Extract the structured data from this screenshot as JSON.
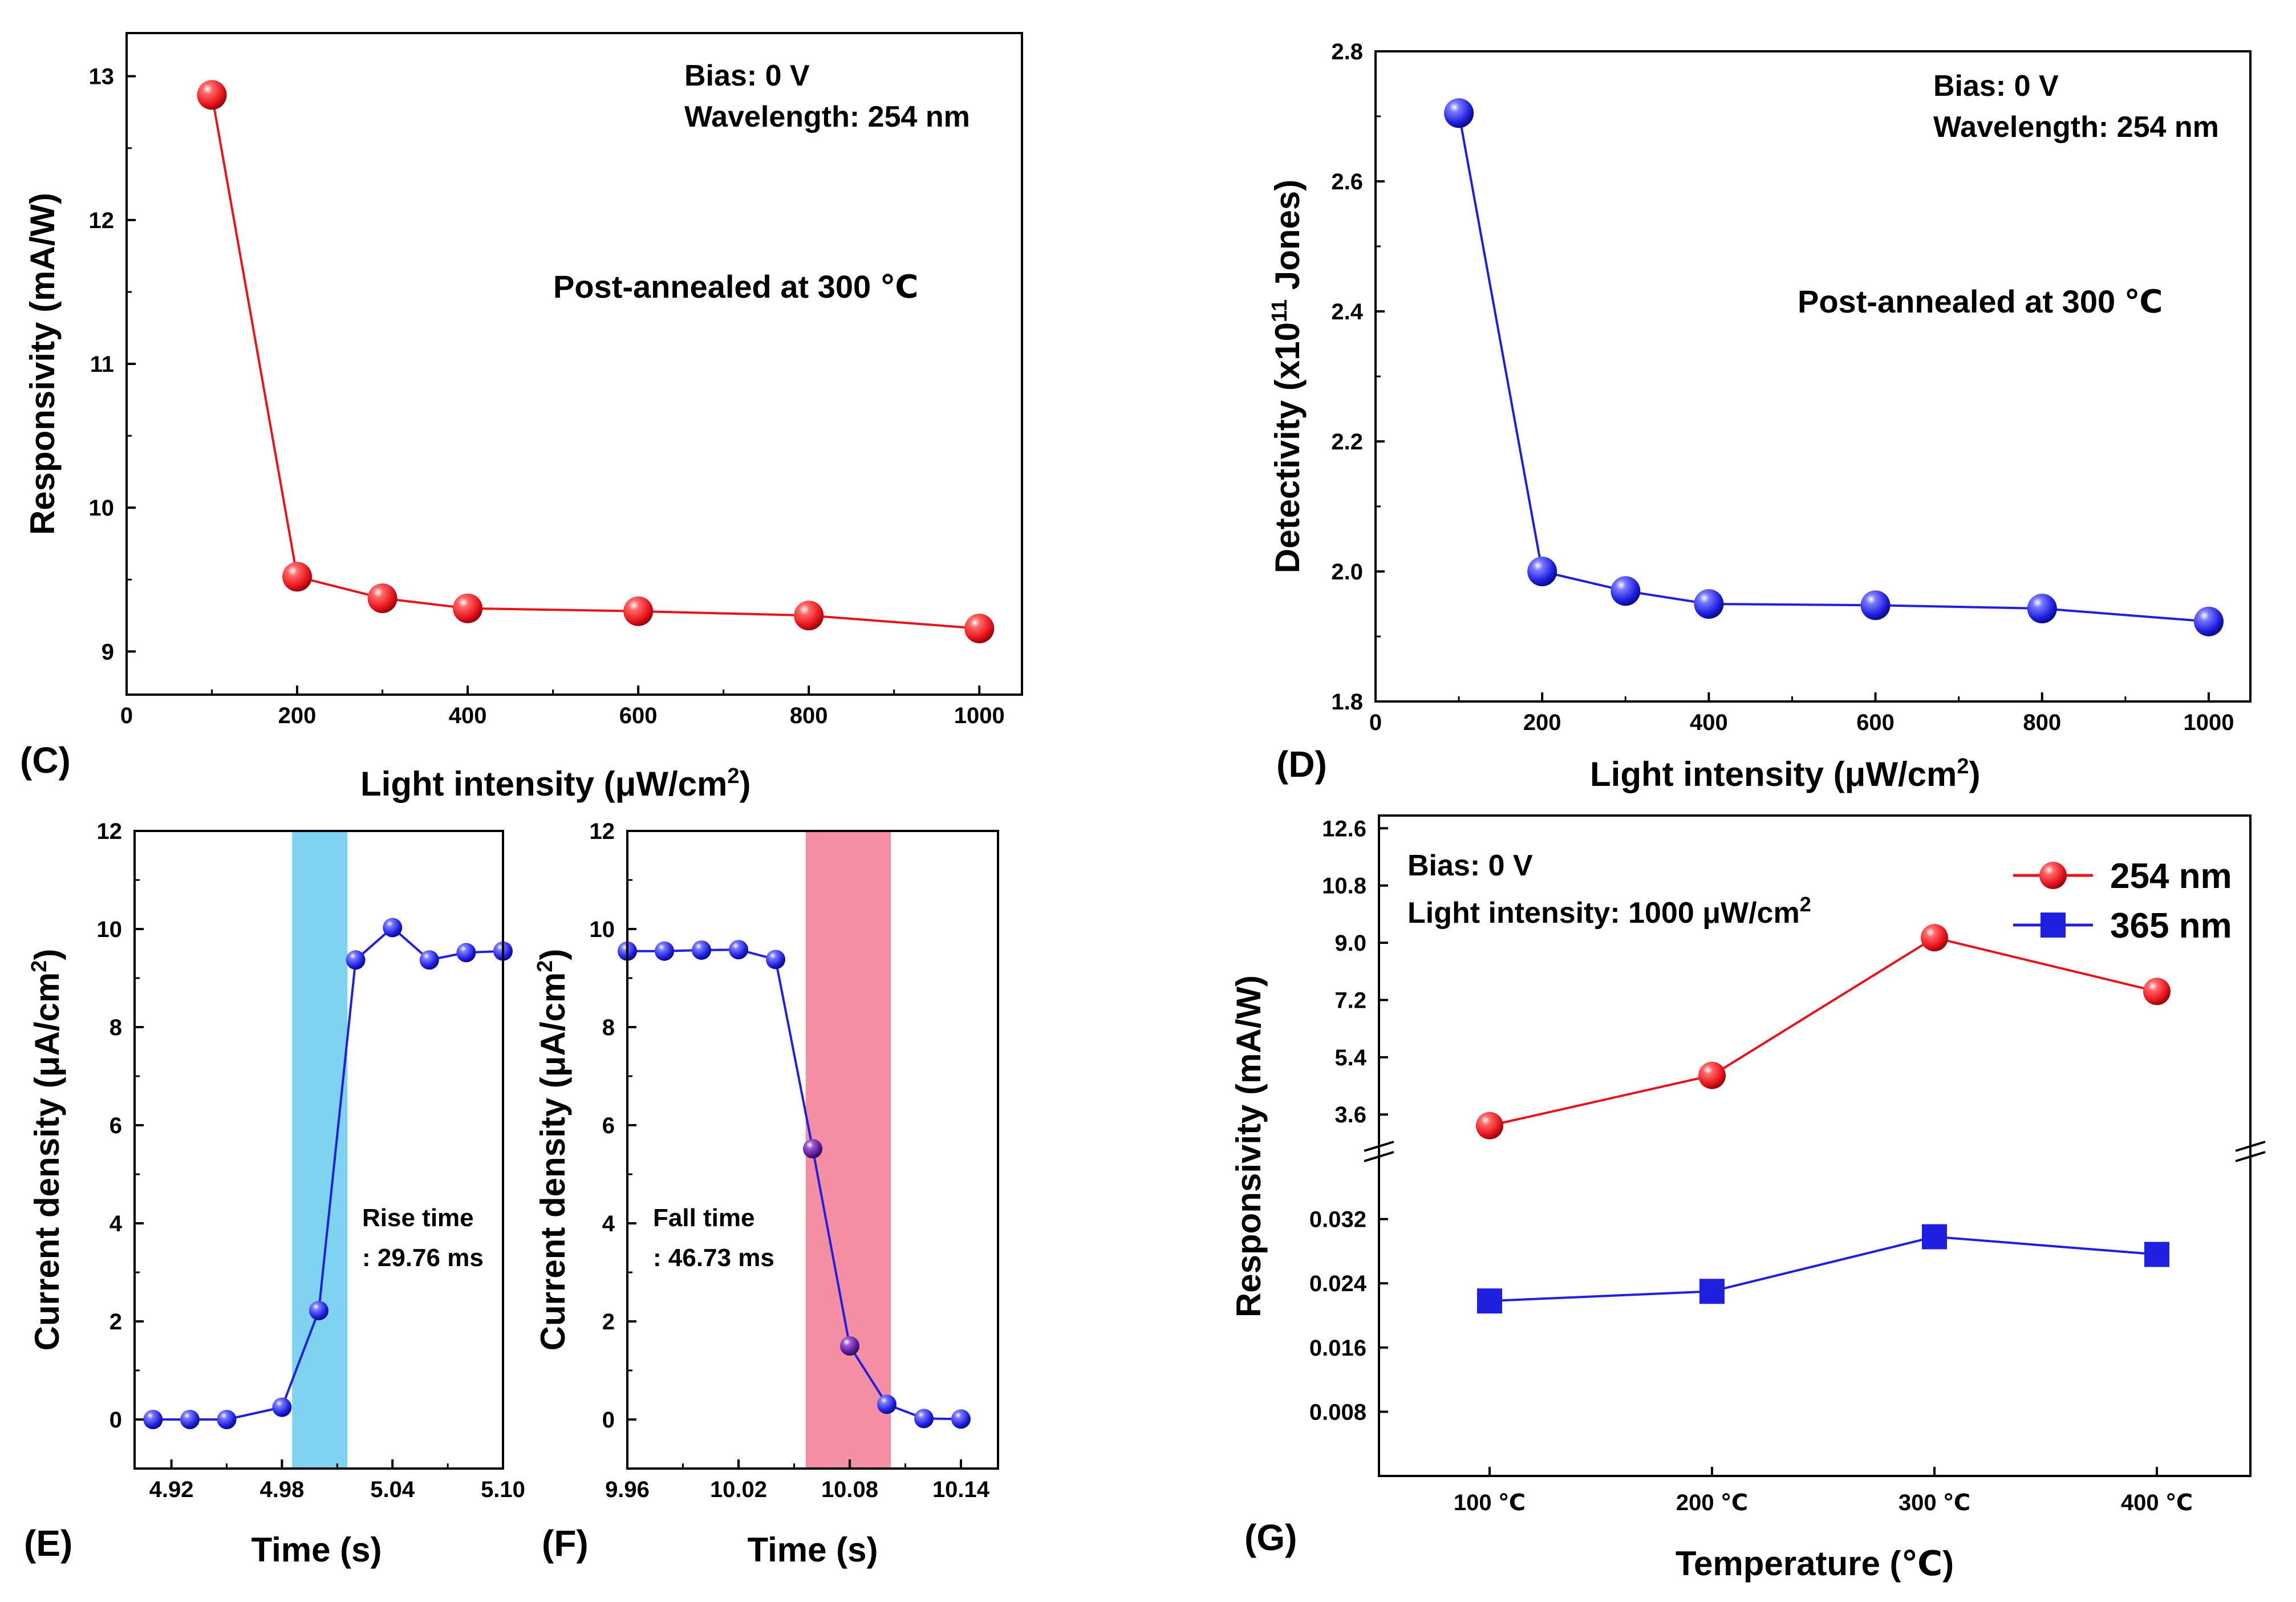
{
  "chart_data": [
    {
      "id": "C",
      "panel_letter": "(C)",
      "type": "line",
      "xlabel_main": "Light intensity (",
      "xlabel_mu": "μ",
      "xlabel_rest": "W/cm",
      "xlabel_sup": "2",
      "xlabel_close": ")",
      "ylabel": "Responsivity (mA/W)",
      "xlim": [
        0,
        1050
      ],
      "ylim": [
        8.7,
        13.3
      ],
      "xticks": [
        "0",
        "200",
        "400",
        "600",
        "800",
        "1000"
      ],
      "yticks": [
        "9",
        "10",
        "11",
        "12",
        "13"
      ],
      "annotations": [
        "Bias: 0 V",
        "Wavelength: 254 nm",
        "Post-annealed  at 300 ℃"
      ],
      "series": [
        {
          "name": "Responsivity",
          "color": "#e8141c",
          "x": [
            100,
            200,
            300,
            400,
            600,
            800,
            1000
          ],
          "y": [
            12.87,
            9.52,
            9.37,
            9.3,
            9.28,
            9.25,
            9.16
          ]
        }
      ]
    },
    {
      "id": "D",
      "panel_letter": "(D)",
      "type": "line",
      "xlabel_main": "Light intensity (",
      "xlabel_mu": "μ",
      "xlabel_rest": "W/cm",
      "xlabel_sup": "2",
      "xlabel_close": ")",
      "ylabel_pre": "Detectivity (x10",
      "ylabel_sup": "11",
      "ylabel_post": " Jones)",
      "xlim": [
        0,
        1050
      ],
      "ylim": [
        1.8,
        2.8
      ],
      "xticks": [
        "0",
        "200",
        "400",
        "600",
        "800",
        "1000"
      ],
      "yticks": [
        "1.8",
        "2.0",
        "2.2",
        "2.4",
        "2.6",
        "2.8"
      ],
      "annotations": [
        "Bias: 0 V",
        "Wavelength: 254 nm",
        "Post-annealed  at 300 ℃"
      ],
      "series": [
        {
          "name": "Detectivity",
          "color": "#1f1fe0",
          "x": [
            100,
            200,
            300,
            400,
            600,
            800,
            1000
          ],
          "y": [
            2.705,
            2.0,
            1.97,
            1.95,
            1.948,
            1.943,
            1.923
          ]
        }
      ]
    },
    {
      "id": "E",
      "panel_letter": "(E)",
      "type": "line",
      "xlabel": "Time (s)",
      "ylabel_pre": "Current density (μA/cm",
      "ylabel_sup": "2",
      "ylabel_post": ")",
      "xlim": [
        4.9,
        5.1
      ],
      "ylim": [
        -1,
        12
      ],
      "xticks": [
        "4.92",
        "4.98",
        "5.04",
        "5.10"
      ],
      "yticks": [
        "0",
        "2",
        "4",
        "6",
        "8",
        "10",
        "12"
      ],
      "annotations": [
        "Rise time",
        ": 29.76 ms"
      ],
      "highlight": {
        "x0": 4.9855,
        "x1": 5.0155,
        "color": "#7fd3f1"
      },
      "series": [
        {
          "name": "Current density",
          "color": "#1f1fe0",
          "x": [
            4.91,
            4.93,
            4.95,
            4.98,
            5.0,
            5.02,
            5.04,
            5.06,
            5.08,
            5.1
          ],
          "y": [
            0.0,
            0.0,
            0.0,
            0.25,
            2.22,
            9.37,
            10.03,
            9.37,
            9.52,
            9.55
          ]
        }
      ]
    },
    {
      "id": "F",
      "panel_letter": "(F)",
      "type": "line",
      "xlabel": "Time (s)",
      "ylabel_pre": "Current density (μA/cm",
      "ylabel_sup": "2",
      "ylabel_post": ")",
      "xlim": [
        9.96,
        10.16
      ],
      "ylim": [
        -1,
        12
      ],
      "xticks": [
        "9.96",
        "10.02",
        "10.08",
        "10.14"
      ],
      "yticks": [
        "0",
        "2",
        "4",
        "6",
        "8",
        "10",
        "12"
      ],
      "annotations": [
        "Fall time",
        ": 46.73 ms"
      ],
      "highlight": {
        "x0": 10.0562,
        "x1": 10.1022,
        "color": "#f48fa3"
      },
      "series": [
        {
          "name": "Current density",
          "color": "#1f1fe0",
          "x": [
            9.96,
            9.98,
            10.0,
            10.02,
            10.04,
            10.06,
            10.08,
            10.1,
            10.12,
            10.14
          ],
          "y": [
            9.55,
            9.55,
            9.57,
            9.58,
            9.38,
            5.52,
            1.5,
            0.31,
            0.02,
            0.01
          ]
        }
      ]
    },
    {
      "id": "G",
      "panel_letter": "(G)",
      "type": "line",
      "xlabel": "Temperature (℃)",
      "ylabel": "Responsivity (mA/W)",
      "categories": [
        "100 ℃",
        "200 ℃",
        "300 ℃",
        "400 ℃"
      ],
      "yaxis_break": true,
      "ylim_upper": [
        2.6,
        13.0
      ],
      "ylim_lower": [
        0.0,
        0.04
      ],
      "yticks_upper": [
        "3.6",
        "5.4",
        "7.2",
        "9.0",
        "10.8",
        "12.6"
      ],
      "yticks_lower": [
        "0.008",
        "0.016",
        "0.024",
        "0.032"
      ],
      "annotations": [
        "Bias: 0 V",
        "Light intensity: 1000 μW/cm",
        "2"
      ],
      "series": [
        {
          "name": "254 nm",
          "color": "#e8141c",
          "marker": "circle",
          "values": [
            3.25,
            4.83,
            9.16,
            7.47
          ]
        },
        {
          "name": "365 nm",
          "color": "#1f1fe0",
          "marker": "square",
          "values": [
            0.0218,
            0.023,
            0.0298,
            0.0276
          ]
        }
      ]
    }
  ]
}
